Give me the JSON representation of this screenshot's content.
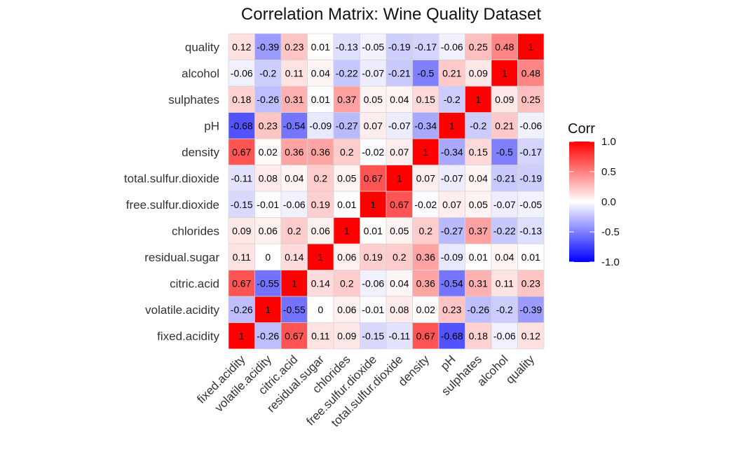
{
  "chart_data": {
    "type": "heatmap",
    "title": "Correlation Matrix: Wine Quality Dataset",
    "variables": [
      "fixed.acidity",
      "volatile.acidity",
      "citric.acid",
      "residual.sugar",
      "chlorides",
      "free.sulfur.dioxide",
      "total.sulfur.dioxide",
      "density",
      "pH",
      "sulphates",
      "alcohol",
      "quality"
    ],
    "matrix": [
      [
        1,
        -0.26,
        0.67,
        0.11,
        0.09,
        -0.15,
        -0.11,
        0.67,
        -0.68,
        0.18,
        -0.06,
        0.12
      ],
      [
        -0.26,
        1,
        -0.55,
        0,
        0.06,
        -0.01,
        0.08,
        0.02,
        0.23,
        -0.26,
        -0.2,
        -0.39
      ],
      [
        0.67,
        -0.55,
        1,
        0.14,
        0.2,
        -0.06,
        0.04,
        0.36,
        -0.54,
        0.31,
        0.11,
        0.23
      ],
      [
        0.11,
        0,
        0.14,
        1,
        0.06,
        0.19,
        0.2,
        0.36,
        -0.09,
        0.01,
        0.04,
        0.01
      ],
      [
        0.09,
        0.06,
        0.2,
        0.06,
        1,
        0.01,
        0.05,
        0.2,
        -0.27,
        0.37,
        -0.22,
        -0.13
      ],
      [
        -0.15,
        -0.01,
        -0.06,
        0.19,
        0.01,
        1,
        0.67,
        -0.02,
        0.07,
        0.05,
        -0.07,
        -0.05
      ],
      [
        -0.11,
        0.08,
        0.04,
        0.2,
        0.05,
        0.67,
        1,
        0.07,
        -0.07,
        0.04,
        -0.21,
        -0.19
      ],
      [
        0.67,
        0.02,
        0.36,
        0.36,
        0.2,
        -0.02,
        0.07,
        1,
        -0.34,
        0.15,
        -0.5,
        -0.17
      ],
      [
        -0.68,
        0.23,
        -0.54,
        -0.09,
        -0.27,
        0.07,
        -0.07,
        -0.34,
        1,
        -0.2,
        0.21,
        -0.06
      ],
      [
        0.18,
        -0.26,
        0.31,
        0.01,
        0.37,
        0.05,
        0.04,
        0.15,
        -0.2,
        1,
        0.09,
        0.25
      ],
      [
        -0.06,
        -0.2,
        0.11,
        0.04,
        -0.22,
        -0.07,
        -0.21,
        -0.5,
        0.21,
        0.09,
        1,
        0.48
      ],
      [
        0.12,
        -0.39,
        0.23,
        0.01,
        -0.13,
        -0.05,
        -0.19,
        -0.17,
        -0.06,
        0.25,
        0.48,
        1
      ]
    ],
    "color_scale": {
      "low": "#0000FF",
      "mid": "#FFFFFF",
      "high": "#FF0000",
      "limits": [
        -1,
        1
      ]
    },
    "legend": {
      "title": "Corr",
      "ticks": [
        1.0,
        0.5,
        0.0,
        -0.5,
        -1.0
      ],
      "tick_labels": [
        "1.0",
        "0.5",
        "0.0",
        "-0.5",
        "-1.0"
      ],
      "position": "right"
    },
    "grid": false
  }
}
